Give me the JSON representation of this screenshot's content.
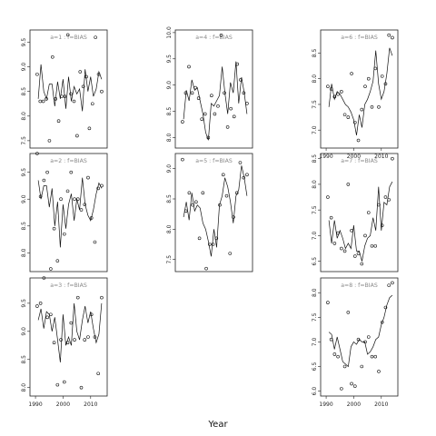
{
  "xlabel": "Year",
  "chart_data": [
    {
      "type": "line",
      "title": "a=1 : f=BIAS",
      "xlim": [
        1988,
        2016
      ],
      "ylim": [
        7.35,
        9.75
      ],
      "yticks": [
        7.5,
        8.0,
        8.5,
        9.0,
        9.5
      ],
      "xticks": [
        1990,
        2000,
        2010
      ],
      "show_xticks": false,
      "x": [
        1991,
        1992,
        1993,
        1994,
        1995,
        1996,
        1997,
        1998,
        1999,
        2000,
        2001,
        2002,
        2003,
        2004,
        2005,
        2006,
        2007,
        2008,
        2009,
        2010,
        2011,
        2012,
        2013,
        2014
      ],
      "line": [
        8.35,
        9.05,
        8.5,
        8.35,
        8.65,
        8.65,
        8.2,
        8.7,
        8.35,
        8.75,
        8.15,
        8.8,
        8.3,
        8.6,
        8.45,
        8.55,
        8.1,
        8.95,
        8.5,
        8.8,
        8.4,
        8.55,
        8.9,
        8.75
      ],
      "points": [
        8.85,
        8.3,
        8.3,
        8.35,
        7.5,
        9.2,
        8.35,
        7.9,
        8.4,
        8.4,
        9.65,
        8.45,
        8.3,
        7.6,
        8.9,
        8.6,
        8.8,
        7.75,
        8.25,
        9.6,
        8.85,
        8.5
      ]
    },
    {
      "type": "line",
      "title": "a=2 : f=BIAS",
      "xlim": [
        1988,
        2016
      ],
      "ylim": [
        7.65,
        9.85
      ],
      "yticks": [
        8.0,
        8.5,
        9.0,
        9.5
      ],
      "xticks": [
        1990,
        2000,
        2010
      ],
      "show_xticks": false,
      "x": [
        1991,
        1992,
        1993,
        1994,
        1995,
        1996,
        1997,
        1998,
        1999,
        2000,
        2001,
        2002,
        2003,
        2004,
        2005,
        2006,
        2007,
        2008,
        2009,
        2010,
        2011,
        2012,
        2013,
        2014
      ],
      "line": [
        9.35,
        9.0,
        9.25,
        9.25,
        8.85,
        9.2,
        8.5,
        8.95,
        8.1,
        8.9,
        8.45,
        8.9,
        9.1,
        8.6,
        9.0,
        8.8,
        9.4,
        8.9,
        8.7,
        8.6,
        8.8,
        9.1,
        9.3,
        9.2
      ],
      "points": [
        9.85,
        9.05,
        9.35,
        9.5,
        7.7,
        8.45,
        7.85,
        9.0,
        8.35,
        9.15,
        9.5,
        9.0,
        9.0,
        8.8,
        8.9,
        9.4,
        8.65,
        8.2,
        9.2,
        9.25
      ]
    },
    {
      "type": "line",
      "title": "a=3 : f=BIAS",
      "xlim": [
        1988,
        2016
      ],
      "ylim": [
        7.85,
        9.95
      ],
      "yticks": [
        8.0,
        8.5,
        9.0,
        9.5
      ],
      "xticks": [
        1990,
        2000,
        2010
      ],
      "show_xticks": true,
      "x": [
        1991,
        1992,
        1993,
        1994,
        1995,
        1996,
        1997,
        1998,
        1999,
        2000,
        2001,
        2002,
        2003,
        2004,
        2005,
        2006,
        2007,
        2008,
        2009,
        2010,
        2011,
        2012,
        2013,
        2014
      ],
      "line": [
        9.2,
        9.4,
        9.05,
        9.35,
        9.3,
        9.0,
        9.25,
        8.85,
        8.45,
        9.3,
        8.75,
        8.9,
        8.75,
        9.5,
        9.0,
        8.85,
        9.2,
        9.45,
        9.15,
        9.35,
        9.05,
        8.8,
        8.95,
        9.5
      ],
      "points": [
        9.45,
        9.5,
        9.95,
        9.25,
        9.3,
        8.8,
        8.05,
        8.85,
        8.1,
        8.8,
        9.15,
        8.85,
        9.6,
        8.0,
        8.85,
        8.9,
        9.3,
        8.9,
        8.25,
        9.6
      ]
    },
    {
      "type": "line",
      "title": "a=4 : f=BIAS",
      "xlim": [
        1988,
        2016
      ],
      "ylim": [
        7.8,
        10.05
      ],
      "yticks": [
        8.0,
        8.5,
        9.0,
        9.5,
        10.0
      ],
      "xticks": [
        1990,
        2000,
        2010
      ],
      "show_xticks": false,
      "x": [
        1991,
        1992,
        1993,
        1994,
        1995,
        1996,
        1997,
        1998,
        1999,
        2000,
        2001,
        2002,
        2003,
        2004,
        2005,
        2006,
        2007,
        2008,
        2009,
        2010,
        2011,
        2012,
        2013,
        2014
      ],
      "line": [
        8.35,
        8.9,
        8.7,
        9.1,
        8.9,
        8.95,
        8.7,
        8.45,
        8.1,
        7.95,
        8.65,
        8.6,
        8.7,
        8.8,
        9.35,
        8.85,
        8.45,
        9.05,
        8.85,
        9.45,
        8.65,
        9.15,
        8.85,
        8.45
      ],
      "points": [
        8.3,
        8.85,
        9.35,
        8.85,
        8.95,
        8.75,
        8.35,
        8.45,
        8.0,
        8.8,
        8.45,
        8.6,
        9.95,
        8.85,
        8.2,
        8.55,
        8.4,
        9.4,
        9.1,
        8.85,
        8.65
      ]
    },
    {
      "type": "line",
      "title": "a=5 : f=BIAS",
      "xlim": [
        1988,
        2016
      ],
      "ylim": [
        7.3,
        9.25
      ],
      "yticks": [
        7.5,
        8.0,
        8.5,
        9.0
      ],
      "xticks": [
        1990,
        2000,
        2010
      ],
      "show_xticks": false,
      "x": [
        1991,
        1992,
        1993,
        1994,
        1995,
        1996,
        1997,
        1998,
        1999,
        2000,
        2001,
        2002,
        2003,
        2004,
        2005,
        2006,
        2007,
        2008,
        2009,
        2010,
        2011,
        2012,
        2013,
        2014
      ],
      "line": [
        8.2,
        8.45,
        8.15,
        8.6,
        8.3,
        8.4,
        8.35,
        8.1,
        8.0,
        7.8,
        7.55,
        8.0,
        7.7,
        8.4,
        8.55,
        8.85,
        8.7,
        8.45,
        8.1,
        8.55,
        8.65,
        9.05,
        8.85,
        8.55
      ],
      "points": [
        9.15,
        8.3,
        8.6,
        8.4,
        8.45,
        7.85,
        8.6,
        7.35,
        7.75,
        7.75,
        7.85,
        8.4,
        8.9,
        8.55,
        7.6,
        8.2,
        8.6,
        9.1,
        8.85,
        8.9
      ]
    },
    {
      "type": "line",
      "title": "a=6 : f=BIAS",
      "xlim": [
        1988,
        2016
      ],
      "ylim": [
        6.65,
        8.95
      ],
      "yticks": [
        7.0,
        7.5,
        8.0,
        8.5
      ],
      "xticks": [
        1990,
        2000,
        2010
      ],
      "show_xticks": true,
      "x": [
        1991,
        1992,
        1993,
        1994,
        1995,
        1996,
        1997,
        1998,
        1999,
        2000,
        2001,
        2002,
        2003,
        2004,
        2005,
        2006,
        2007,
        2008,
        2009,
        2010,
        2011,
        2012,
        2013,
        2014
      ],
      "line": [
        7.45,
        7.9,
        7.6,
        7.75,
        7.7,
        7.6,
        7.5,
        7.45,
        7.35,
        7.2,
        6.9,
        7.3,
        7.05,
        7.5,
        7.6,
        7.75,
        7.95,
        8.55,
        7.9,
        7.6,
        7.75,
        8.1,
        8.6,
        8.45
      ],
      "points": [
        7.85,
        7.8,
        7.65,
        7.7,
        7.75,
        7.3,
        7.25,
        8.1,
        7.15,
        6.8,
        7.4,
        7.85,
        8.0,
        7.45,
        8.2,
        7.45,
        8.05,
        7.9,
        8.85,
        8.8
      ]
    },
    {
      "type": "line",
      "title": "a=7 : f=BIAS",
      "xlim": [
        1988,
        2016
      ],
      "ylim": [
        6.3,
        8.6
      ],
      "yticks": [
        6.5,
        7.0,
        7.5,
        8.0,
        8.5
      ],
      "xticks": [
        1990,
        2000,
        2010
      ],
      "show_xticks": false,
      "x": [
        1991,
        1992,
        1993,
        1994,
        1995,
        1996,
        1997,
        1998,
        1999,
        2000,
        2001,
        2002,
        2003,
        2004,
        2005,
        2006,
        2007,
        2008,
        2009,
        2010,
        2011,
        2012,
        2013,
        2014
      ],
      "line": [
        7.3,
        6.85,
        7.3,
        6.95,
        7.1,
        6.95,
        6.75,
        6.85,
        6.75,
        7.2,
        6.7,
        6.7,
        6.5,
        6.8,
        6.95,
        7.0,
        7.35,
        7.1,
        7.95,
        7.1,
        7.65,
        7.6,
        7.95,
        8.05
      ],
      "points": [
        7.75,
        7.35,
        6.85,
        7.05,
        6.75,
        6.7,
        8.0,
        7.1,
        6.6,
        6.65,
        6.45,
        7.0,
        7.45,
        6.8,
        6.8,
        7.6,
        7.2,
        7.75,
        7.7,
        8.5
      ]
    },
    {
      "type": "line",
      "title": "a=8 : f=BIAS",
      "xlim": [
        1988,
        2016
      ],
      "ylim": [
        5.9,
        8.3
      ],
      "yticks": [
        6.0,
        6.5,
        7.0,
        7.5,
        8.0
      ],
      "xticks": [
        1990,
        2000,
        2010
      ],
      "show_xticks": true,
      "x": [
        1991,
        1992,
        1993,
        1994,
        1995,
        1996,
        1997,
        1998,
        1999,
        2000,
        2001,
        2002,
        2003,
        2004,
        2005,
        2006,
        2007,
        2008,
        2009,
        2010,
        2011,
        2012,
        2013,
        2014
      ],
      "line": [
        7.2,
        7.15,
        6.85,
        7.1,
        6.85,
        6.6,
        6.55,
        6.5,
        6.9,
        7.0,
        6.95,
        7.05,
        7.0,
        7.0,
        6.75,
        6.8,
        6.9,
        7.05,
        7.1,
        7.35,
        7.5,
        7.75,
        7.9,
        7.95
      ],
      "points": [
        7.8,
        7.05,
        6.75,
        6.7,
        6.05,
        6.5,
        7.6,
        6.15,
        6.1,
        7.05,
        6.5,
        7.0,
        7.1,
        6.7,
        6.7,
        6.4,
        7.4,
        7.7,
        8.15,
        8.2
      ]
    }
  ]
}
